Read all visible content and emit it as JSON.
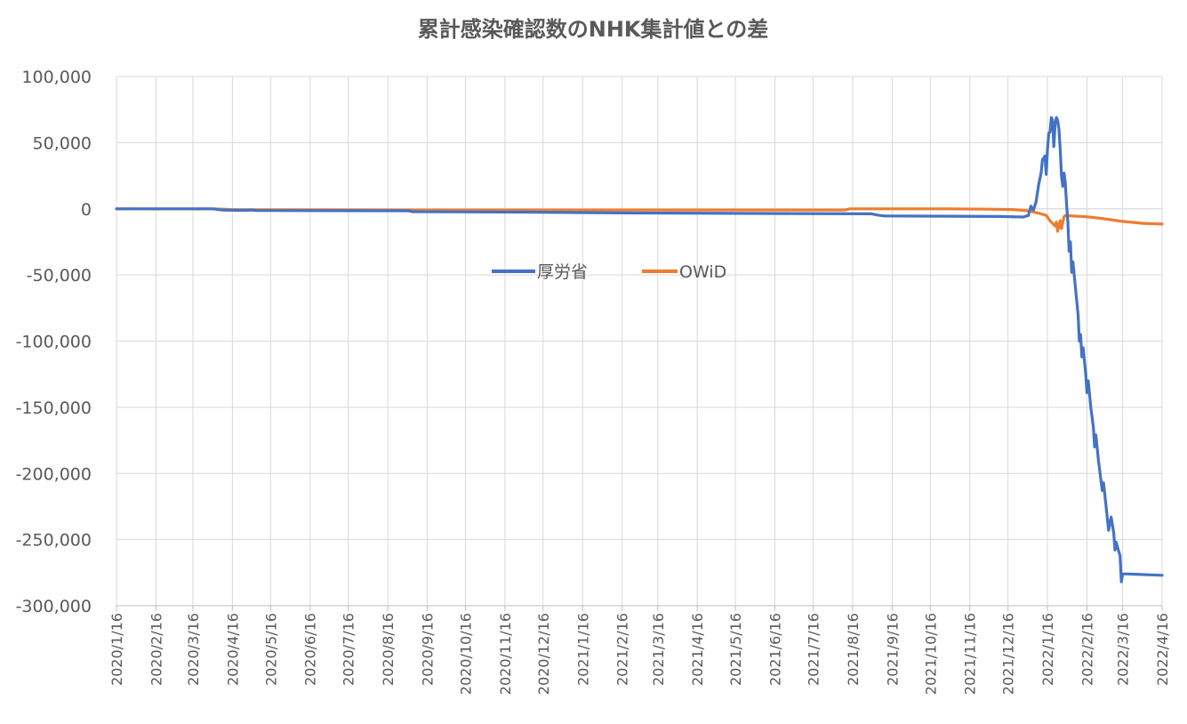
{
  "chart_data": {
    "type": "line",
    "title": "累計感染確認数のNHK集計値との差",
    "xlabel": "",
    "ylabel": "",
    "x_range": [
      "2020-01-16",
      "2022-04-16"
    ],
    "ylim": [
      -300000,
      100000
    ],
    "y_ticks": [
      100000,
      50000,
      0,
      -50000,
      -100000,
      -150000,
      -200000,
      -250000,
      -300000
    ],
    "y_tick_labels": [
      "100,000",
      "50,000",
      "0",
      "-50,000",
      "-100,000",
      "-150,000",
      "-200,000",
      "-250,000",
      "-300,000"
    ],
    "x_tick_labels": [
      "2020/1/16",
      "2020/2/16",
      "2020/3/16",
      "2020/4/16",
      "2020/5/16",
      "2020/6/16",
      "2020/7/16",
      "2020/8/16",
      "2020/9/16",
      "2020/10/16",
      "2020/11/16",
      "2020/12/16",
      "2021/1/16",
      "2021/2/16",
      "2021/3/16",
      "2021/4/16",
      "2021/5/16",
      "2021/6/16",
      "2021/7/16",
      "2021/8/16",
      "2021/9/16",
      "2021/10/16",
      "2021/11/16",
      "2021/12/16",
      "2022/1/16",
      "2022/2/16",
      "2022/3/16",
      "2022/4/16"
    ],
    "grid": true,
    "legend_position": "inside-center",
    "series": [
      {
        "name": "厚労省",
        "color": "#4472C4",
        "points": [
          [
            "2020-01-16",
            0
          ],
          [
            "2020-04-01",
            0
          ],
          [
            "2020-04-08",
            -1000
          ],
          [
            "2020-04-25",
            -1200
          ],
          [
            "2020-05-01",
            -900
          ],
          [
            "2020-05-05",
            -1300
          ],
          [
            "2020-09-01",
            -1500
          ],
          [
            "2020-09-05",
            -2200
          ],
          [
            "2020-12-01",
            -2500
          ],
          [
            "2021-03-01",
            -3200
          ],
          [
            "2021-07-01",
            -3600
          ],
          [
            "2021-08-31",
            -3800
          ],
          [
            "2021-09-05",
            -4800
          ],
          [
            "2021-09-10",
            -5400
          ],
          [
            "2021-12-10",
            -5800
          ],
          [
            "2021-12-28",
            -6200
          ],
          [
            "2022-01-01",
            -5000
          ],
          [
            "2022-01-03",
            2000
          ],
          [
            "2022-01-05",
            -1000
          ],
          [
            "2022-01-07",
            5000
          ],
          [
            "2022-01-09",
            18000
          ],
          [
            "2022-01-11",
            27000
          ],
          [
            "2022-01-12",
            37000
          ],
          [
            "2022-01-14",
            40000
          ],
          [
            "2022-01-15",
            26000
          ],
          [
            "2022-01-16",
            45000
          ],
          [
            "2022-01-17",
            57000
          ],
          [
            "2022-01-18",
            58000
          ],
          [
            "2022-01-19",
            69000
          ],
          [
            "2022-01-20",
            67000
          ],
          [
            "2022-01-21",
            47000
          ],
          [
            "2022-01-22",
            64000
          ],
          [
            "2022-01-23",
            69000
          ],
          [
            "2022-01-24",
            67000
          ],
          [
            "2022-01-25",
            60000
          ],
          [
            "2022-01-26",
            45000
          ],
          [
            "2022-01-27",
            25000
          ],
          [
            "2022-01-28",
            17000
          ],
          [
            "2022-01-29",
            27000
          ],
          [
            "2022-01-30",
            20000
          ],
          [
            "2022-01-31",
            3000
          ],
          [
            "2022-02-01",
            -10000
          ],
          [
            "2022-02-02",
            -32000
          ],
          [
            "2022-02-03",
            -25000
          ],
          [
            "2022-02-04",
            -48000
          ],
          [
            "2022-02-05",
            -40000
          ],
          [
            "2022-02-07",
            -60000
          ],
          [
            "2022-02-09",
            -80000
          ],
          [
            "2022-02-10",
            -100000
          ],
          [
            "2022-02-11",
            -95000
          ],
          [
            "2022-02-12",
            -112000
          ],
          [
            "2022-02-13",
            -105000
          ],
          [
            "2022-02-15",
            -125000
          ],
          [
            "2022-02-16",
            -139000
          ],
          [
            "2022-02-17",
            -130000
          ],
          [
            "2022-02-19",
            -150000
          ],
          [
            "2022-02-21",
            -165000
          ],
          [
            "2022-02-22",
            -180000
          ],
          [
            "2022-02-23",
            -171000
          ],
          [
            "2022-02-25",
            -190000
          ],
          [
            "2022-02-27",
            -205000
          ],
          [
            "2022-02-28",
            -213000
          ],
          [
            "2022-03-01",
            -207000
          ],
          [
            "2022-03-03",
            -225000
          ],
          [
            "2022-03-05",
            -243000
          ],
          [
            "2022-03-07",
            -233000
          ],
          [
            "2022-03-09",
            -245000
          ],
          [
            "2022-03-10",
            -258000
          ],
          [
            "2022-03-11",
            -252000
          ],
          [
            "2022-03-12",
            -256000
          ],
          [
            "2022-03-14",
            -262000
          ],
          [
            "2022-03-15",
            -282000
          ],
          [
            "2022-03-16",
            -276000
          ],
          [
            "2022-03-20",
            -276000
          ],
          [
            "2022-04-16",
            -277000
          ]
        ]
      },
      {
        "name": "OWiD",
        "color": "#ED7D31",
        "points": [
          [
            "2020-01-16",
            0
          ],
          [
            "2020-04-01",
            0
          ],
          [
            "2020-04-15",
            -600
          ],
          [
            "2020-05-01",
            -800
          ],
          [
            "2020-09-01",
            -900
          ],
          [
            "2020-12-01",
            -900
          ],
          [
            "2021-03-01",
            -900
          ],
          [
            "2021-07-01",
            -900
          ],
          [
            "2021-08-10",
            -900
          ],
          [
            "2021-08-14",
            0
          ],
          [
            "2021-11-01",
            0
          ],
          [
            "2021-12-01",
            -300
          ],
          [
            "2021-12-20",
            -600
          ],
          [
            "2022-01-01",
            -1500
          ],
          [
            "2022-01-10",
            -3500
          ],
          [
            "2022-01-15",
            -5000
          ],
          [
            "2022-01-18",
            -9000
          ],
          [
            "2022-01-20",
            -11000
          ],
          [
            "2022-01-22",
            -13000
          ],
          [
            "2022-01-23",
            -10000
          ],
          [
            "2022-01-24",
            -17000
          ],
          [
            "2022-01-26",
            -9000
          ],
          [
            "2022-01-27",
            -15000
          ],
          [
            "2022-01-29",
            -6000
          ],
          [
            "2022-01-30",
            -5000
          ],
          [
            "2022-02-05",
            -5500
          ],
          [
            "2022-02-16",
            -6000
          ],
          [
            "2022-03-01",
            -7500
          ],
          [
            "2022-03-16",
            -9500
          ],
          [
            "2022-04-01",
            -11000
          ],
          [
            "2022-04-16",
            -11500
          ]
        ]
      }
    ]
  }
}
